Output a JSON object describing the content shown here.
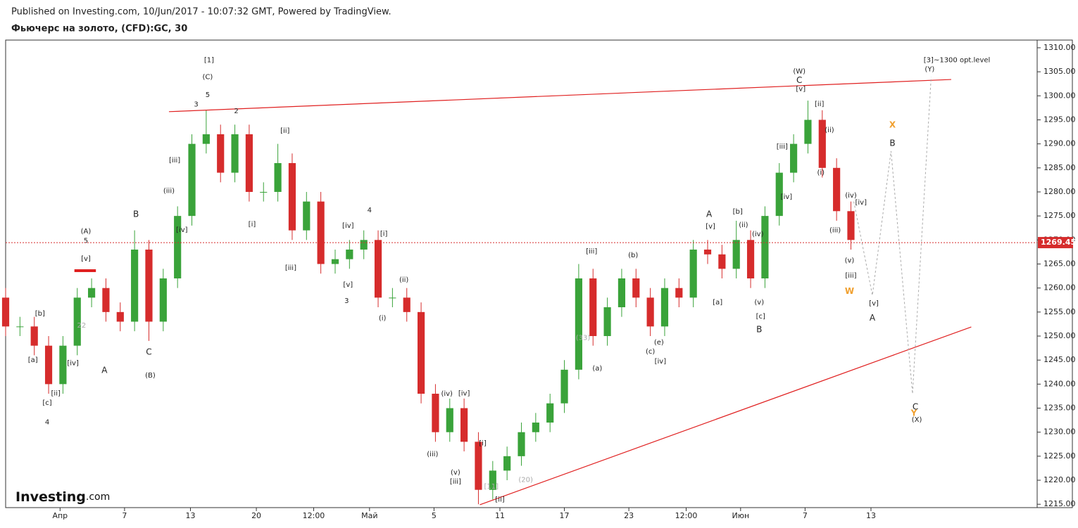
{
  "header": {
    "published": "Published on Investing.com, 10/Jun/2017 - 10:07:32 GMT, Powered by TradingView.",
    "symbol": "Фьючерс на золото, (CFD):GC, 30"
  },
  "logo": {
    "brand": "Investing",
    "suffix": ".com"
  },
  "chart_data": {
    "type": "candlestick",
    "xlim": [
      0,
      72
    ],
    "ylim": [
      1214.3,
      1311.6
    ],
    "xticks": [
      {
        "value": 3.8,
        "label": "Апр"
      },
      {
        "value": 8.3,
        "label": "7"
      },
      {
        "value": 12.9,
        "label": "13"
      },
      {
        "value": 17.5,
        "label": "20"
      },
      {
        "value": 21.5,
        "label": "12:00"
      },
      {
        "value": 25.4,
        "label": "Май"
      },
      {
        "value": 29.9,
        "label": "5"
      },
      {
        "value": 34.5,
        "label": "11"
      },
      {
        "value": 39,
        "label": "17"
      },
      {
        "value": 43.5,
        "label": "23"
      },
      {
        "value": 47.5,
        "label": "12:00"
      },
      {
        "value": 51.3,
        "label": "Июн"
      },
      {
        "value": 55.8,
        "label": "7"
      },
      {
        "value": 60.4,
        "label": "13"
      }
    ],
    "yticks": [
      {
        "value": 1215,
        "label": "1215.00"
      },
      {
        "value": 1220,
        "label": "1220.00"
      },
      {
        "value": 1225,
        "label": "1225.00"
      },
      {
        "value": 1230,
        "label": "1230.00"
      },
      {
        "value": 1235,
        "label": "1235.00"
      },
      {
        "value": 1240,
        "label": "1240.00"
      },
      {
        "value": 1245,
        "label": "1245.00"
      },
      {
        "value": 1250,
        "label": "1250.00"
      },
      {
        "value": 1255,
        "label": "1255.00"
      },
      {
        "value": 1260,
        "label": "1260.00"
      },
      {
        "value": 1265,
        "label": "1265.00"
      },
      {
        "value": 1270,
        "label": "1270.00"
      },
      {
        "value": 1275,
        "label": "1275.00"
      },
      {
        "value": 1280,
        "label": "1280.00"
      },
      {
        "value": 1285,
        "label": "1285.00"
      },
      {
        "value": 1290,
        "label": "1290.00"
      },
      {
        "value": 1295,
        "label": "1295.00"
      },
      {
        "value": 1300,
        "label": "1300.00"
      },
      {
        "value": 1305,
        "label": "1305.00"
      },
      {
        "value": 1310,
        "label": "1310.00"
      }
    ],
    "up_color": "#3aa33a",
    "down_color": "#d62c2c",
    "open": [
      1258,
      1252,
      1252,
      1248,
      1240,
      1248,
      1258,
      1260,
      1255,
      1253,
      1268,
      1253,
      1262,
      1275,
      1290,
      1292,
      1284,
      1292,
      1280,
      1280,
      1286,
      1272,
      1278,
      1265,
      1266,
      1268,
      1270,
      1258,
      1258,
      1255,
      1238,
      1230,
      1235,
      1228,
      1218,
      1222,
      1225,
      1230,
      1232,
      1236,
      1243,
      1262,
      1250,
      1256,
      1262,
      1258,
      1252,
      1260,
      1258,
      1268,
      1267,
      1264,
      1270,
      1262,
      1275,
      1284,
      1290,
      1295,
      1285,
      1276
    ],
    "high": [
      1260,
      1254,
      1254,
      1250,
      1250,
      1260,
      1262,
      1262,
      1257,
      1272,
      1270,
      1264,
      1277,
      1292,
      1297,
      1294,
      1294,
      1294,
      1282,
      1290,
      1288,
      1280,
      1280,
      1268,
      1270,
      1272,
      1272,
      1260,
      1260,
      1257,
      1240,
      1237,
      1237,
      1230,
      1224,
      1227,
      1232,
      1234,
      1238,
      1245,
      1265,
      1264,
      1258,
      1264,
      1264,
      1260,
      1262,
      1262,
      1270,
      1270,
      1269,
      1274,
      1272,
      1277,
      1286,
      1292,
      1299,
      1297,
      1287,
      1278
    ],
    "low": [
      1250,
      1250,
      1246,
      1238,
      1238,
      1246,
      1256,
      1253,
      1251,
      1251,
      1249,
      1251,
      1260,
      1273,
      1288,
      1282,
      1282,
      1278,
      1278,
      1278,
      1270,
      1270,
      1263,
      1263,
      1264,
      1266,
      1256,
      1256,
      1253,
      1236,
      1228,
      1228,
      1226,
      1215,
      1216,
      1220,
      1223,
      1228,
      1230,
      1234,
      1241,
      1248,
      1248,
      1254,
      1256,
      1250,
      1250,
      1256,
      1256,
      1265,
      1262,
      1262,
      1260,
      1260,
      1273,
      1282,
      1288,
      1283,
      1274,
      1268
    ],
    "close": [
      1252,
      1252,
      1248,
      1240,
      1248,
      1258,
      1260,
      1255,
      1253,
      1268,
      1253,
      1262,
      1275,
      1290,
      1292,
      1284,
      1292,
      1280,
      1280,
      1286,
      1272,
      1278,
      1265,
      1266,
      1268,
      1270,
      1258,
      1258,
      1255,
      1238,
      1230,
      1235,
      1228,
      1218,
      1222,
      1225,
      1230,
      1232,
      1236,
      1243,
      1262,
      1250,
      1256,
      1262,
      1258,
      1252,
      1260,
      1258,
      1268,
      1267,
      1264,
      1270,
      1262,
      1275,
      1284,
      1290,
      1295,
      1285,
      1276,
      1270
    ],
    "last_price": 1269.45,
    "trend_lines": [
      {
        "x": [
          11.4,
          66.0
        ],
        "y": [
          1296.7,
          1303.4
        ]
      },
      {
        "x": [
          33.1,
          67.4
        ],
        "y": [
          1214.9,
          1251.9
        ]
      },
      {
        "x": [
          4.8,
          6.3
        ],
        "y": [
          1263.6,
          1263.6
        ]
      }
    ],
    "projection": {
      "x": [
        59.2,
        60.5,
        61.8,
        63.3,
        64.6
      ],
      "y": [
        1278.0,
        1258.5,
        1288.5,
        1238.0,
        1303.9
      ]
    },
    "annotations": [
      {
        "text": "(A)",
        "x": 5.6,
        "y": 1271.8
      },
      {
        "text": "5",
        "x": 5.6,
        "y": 1269.8
      },
      {
        "text": "[v]",
        "x": 5.6,
        "y": 1266.1
      },
      {
        "text": "22",
        "x": 5.3,
        "y": 1252.2,
        "color": "#aaaaaa"
      },
      {
        "text": "[b]",
        "x": 2.4,
        "y": 1254.7
      },
      {
        "text": "[a]",
        "x": 1.9,
        "y": 1245.0
      },
      {
        "text": "[c]",
        "x": 2.9,
        "y": 1236.1
      },
      {
        "text": "4",
        "x": 2.9,
        "y": 1232.1
      },
      {
        "text": "[ii]",
        "x": 3.5,
        "y": 1238.1
      },
      {
        "text": "[iv]",
        "x": 4.7,
        "y": 1244.4
      },
      {
        "text": "A",
        "x": 6.9,
        "y": 1242.8
      },
      {
        "text": "B",
        "x": 9.1,
        "y": 1275.3
      },
      {
        "text": "C",
        "x": 10.0,
        "y": 1246.6
      },
      {
        "text": "(B)",
        "x": 10.1,
        "y": 1241.8
      },
      {
        "text": "[1]",
        "x": 14.2,
        "y": 1307.4
      },
      {
        "text": "(C)",
        "x": 14.1,
        "y": 1303.9
      },
      {
        "text": "5",
        "x": 14.1,
        "y": 1300.2
      },
      {
        "text": "3",
        "x": 13.3,
        "y": 1298.2
      },
      {
        "text": "2",
        "x": 16.1,
        "y": 1296.8
      },
      {
        "text": "[ii]",
        "x": 19.5,
        "y": 1292.7
      },
      {
        "text": "[iii]",
        "x": 11.8,
        "y": 1286.6
      },
      {
        "text": "(iii)",
        "x": 11.4,
        "y": 1280.2
      },
      {
        "text": "[iv]",
        "x": 12.3,
        "y": 1272.1
      },
      {
        "text": "[i]",
        "x": 17.2,
        "y": 1273.3
      },
      {
        "text": "[iii]",
        "x": 19.9,
        "y": 1264.2
      },
      {
        "text": "[iv]",
        "x": 23.9,
        "y": 1273.0
      },
      {
        "text": "[v]",
        "x": 23.9,
        "y": 1260.7
      },
      {
        "text": "3",
        "x": 23.8,
        "y": 1257.3
      },
      {
        "text": "4",
        "x": 25.4,
        "y": 1276.2
      },
      {
        "text": "[i]",
        "x": 26.4,
        "y": 1271.3
      },
      {
        "text": "(ii)",
        "x": 27.8,
        "y": 1261.7
      },
      {
        "text": "(i)",
        "x": 26.3,
        "y": 1253.7
      },
      {
        "text": "(iii)",
        "x": 29.8,
        "y": 1225.4
      },
      {
        "text": "(iv)",
        "x": 30.8,
        "y": 1238.0
      },
      {
        "text": "[iv]",
        "x": 32.0,
        "y": 1238.1
      },
      {
        "text": "(v)",
        "x": 31.4,
        "y": 1221.6
      },
      {
        "text": "[iii]",
        "x": 31.4,
        "y": 1219.7
      },
      {
        "text": "[i]",
        "x": 33.3,
        "y": 1227.7
      },
      {
        "text": "[ii]",
        "x": 34.5,
        "y": 1216.0
      },
      {
        "text": "[11]",
        "x": 33.9,
        "y": 1218.7,
        "color": "#aaaaaa"
      },
      {
        "text": "(20)",
        "x": 36.3,
        "y": 1220.1,
        "color": "#aaaaaa"
      },
      {
        "text": "(33)",
        "x": 40.3,
        "y": 1249.6,
        "color": "#aaaaaa"
      },
      {
        "text": "[iii]",
        "x": 40.9,
        "y": 1267.6
      },
      {
        "text": "(a)",
        "x": 41.3,
        "y": 1243.3
      },
      {
        "text": "(b)",
        "x": 43.8,
        "y": 1266.8
      },
      {
        "text": "(c)",
        "x": 45.0,
        "y": 1246.8
      },
      {
        "text": "(e)",
        "x": 45.6,
        "y": 1248.7
      },
      {
        "text": "[iv]",
        "x": 45.7,
        "y": 1244.7
      },
      {
        "text": "A",
        "x": 49.1,
        "y": 1275.3
      },
      {
        "text": "[v]",
        "x": 49.2,
        "y": 1272.8
      },
      {
        "text": "[a]",
        "x": 49.7,
        "y": 1257.0
      },
      {
        "text": "[b]",
        "x": 51.1,
        "y": 1275.9
      },
      {
        "text": "(ii)",
        "x": 51.5,
        "y": 1273.1
      },
      {
        "text": "(iv)",
        "x": 52.5,
        "y": 1271.2
      },
      {
        "text": "[c]",
        "x": 52.7,
        "y": 1254.1
      },
      {
        "text": "B",
        "x": 52.6,
        "y": 1251.3
      },
      {
        "text": "(v)",
        "x": 52.6,
        "y": 1257.0
      },
      {
        "text": "(W)",
        "x": 55.4,
        "y": 1305.1
      },
      {
        "text": "C",
        "x": 55.4,
        "y": 1303.2
      },
      {
        "text": "[v]",
        "x": 55.5,
        "y": 1301.4
      },
      {
        "text": "[ii]",
        "x": 56.8,
        "y": 1298.3
      },
      {
        "text": "[iii]",
        "x": 54.2,
        "y": 1289.4
      },
      {
        "text": "[iv]",
        "x": 54.5,
        "y": 1279.0
      },
      {
        "text": "(ii)",
        "x": 57.5,
        "y": 1292.9
      },
      {
        "text": "(i)",
        "x": 56.9,
        "y": 1284.0
      },
      {
        "text": "(iv)",
        "x": 59.0,
        "y": 1279.3
      },
      {
        "text": "[iv]",
        "x": 59.7,
        "y": 1277.8
      },
      {
        "text": "(iii)",
        "x": 57.9,
        "y": 1272.0
      },
      {
        "text": "(v)",
        "x": 58.9,
        "y": 1265.7
      },
      {
        "text": "[iii]",
        "x": 59.0,
        "y": 1262.6
      },
      {
        "text": "W",
        "x": 58.9,
        "y": 1259.3,
        "color": "#f0a030"
      },
      {
        "text": "[v]",
        "x": 60.6,
        "y": 1256.8
      },
      {
        "text": "A",
        "x": 60.5,
        "y": 1253.7
      },
      {
        "text": "X",
        "x": 61.9,
        "y": 1293.9,
        "color": "#f0a030"
      },
      {
        "text": "B",
        "x": 61.9,
        "y": 1290.1
      },
      {
        "text": "C",
        "x": 63.5,
        "y": 1235.2
      },
      {
        "text": "Y",
        "x": 63.4,
        "y": 1233.9,
        "color": "#f0a030"
      },
      {
        "text": "(X)",
        "x": 63.6,
        "y": 1232.6
      },
      {
        "text": "[3]~1300 opt.level",
        "x": 66.4,
        "y": 1307.4
      },
      {
        "text": "(Y)",
        "x": 64.5,
        "y": 1305.5
      }
    ]
  }
}
